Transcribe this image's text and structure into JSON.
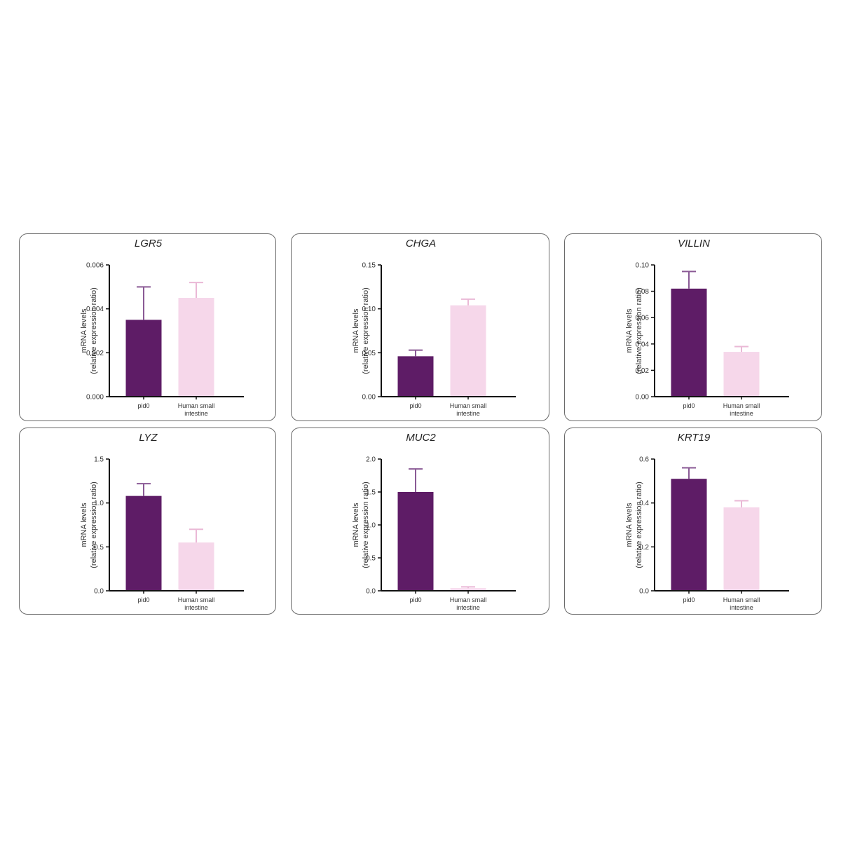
{
  "colors": {
    "bar1": "#5e1c66",
    "bar2": "#f6d7ea",
    "err1": "#8a5a95",
    "err2": "#eab8d6"
  },
  "chart_data": [
    {
      "type": "bar",
      "title": "LGR5",
      "ylabel": [
        "mRNA levels",
        "(relative expression ratio)"
      ],
      "categories": [
        "pid0",
        "Human small intestine"
      ],
      "category_lines": [
        [
          "pid0"
        ],
        [
          "Human small",
          "intestine"
        ]
      ],
      "values": [
        0.0035,
        0.0045
      ],
      "errors": [
        0.0015,
        0.0007
      ],
      "ylim": [
        0,
        0.006
      ],
      "yticks": [
        0,
        0.002,
        0.004,
        0.006
      ],
      "ytick_labels": [
        "0.000",
        "0.002",
        "0.004",
        "0.006"
      ]
    },
    {
      "type": "bar",
      "title": "CHGA",
      "ylabel": [
        "mRNA levels",
        "(relative expression ratio)"
      ],
      "categories": [
        "pid0",
        "Human small intestine"
      ],
      "category_lines": [
        [
          "pid0"
        ],
        [
          "Human small",
          "intestine"
        ]
      ],
      "values": [
        0.046,
        0.104
      ],
      "errors": [
        0.007,
        0.007
      ],
      "ylim": [
        0,
        0.15
      ],
      "yticks": [
        0,
        0.05,
        0.1,
        0.15
      ],
      "ytick_labels": [
        "0.00",
        "0.05",
        "0.10",
        "0.15"
      ]
    },
    {
      "type": "bar",
      "title": "VILLIN",
      "ylabel": [
        "mRNA levels",
        "(relative expression ratio)"
      ],
      "categories": [
        "pid0",
        "Human small intestine"
      ],
      "category_lines": [
        [
          "pid0"
        ],
        [
          "Human small",
          "intestine"
        ]
      ],
      "values": [
        0.082,
        0.034
      ],
      "errors": [
        0.013,
        0.004
      ],
      "ylim": [
        0,
        0.1
      ],
      "yticks": [
        0,
        0.02,
        0.04,
        0.06,
        0.08,
        0.1
      ],
      "ytick_labels": [
        "0.00",
        "0.02",
        "0.04",
        "0.06",
        "0.08",
        "0.10"
      ]
    },
    {
      "type": "bar",
      "title": "LYZ",
      "ylabel": [
        "mRNA levels",
        "(relative expression ratio)"
      ],
      "categories": [
        "pid0",
        "Human small intestine"
      ],
      "category_lines": [
        [
          "pid0"
        ],
        [
          "Human small",
          "intestine"
        ]
      ],
      "values": [
        1.08,
        0.55
      ],
      "errors": [
        0.14,
        0.15
      ],
      "ylim": [
        0,
        1.5
      ],
      "yticks": [
        0,
        0.5,
        1.0,
        1.5
      ],
      "ytick_labels": [
        "0.0",
        "0.5",
        "1.0",
        "1.5"
      ]
    },
    {
      "type": "bar",
      "title": "MUC2",
      "ylabel": [
        "mRNA levels",
        "(relative expression ratio)"
      ],
      "categories": [
        "pid0",
        "Human small intestine"
      ],
      "category_lines": [
        [
          "pid0"
        ],
        [
          "Human small",
          "intestine"
        ]
      ],
      "values": [
        1.5,
        0.04
      ],
      "errors": [
        0.35,
        0.02
      ],
      "ylim": [
        0,
        2.0
      ],
      "yticks": [
        0,
        0.5,
        1.0,
        1.5,
        2.0
      ],
      "ytick_labels": [
        "0.0",
        "0.5",
        "1.0",
        "1.5",
        "2.0"
      ]
    },
    {
      "type": "bar",
      "title": "KRT19",
      "ylabel": [
        "mRNA levels",
        "(relative expression ratio)"
      ],
      "categories": [
        "pid0",
        "Human small intestine"
      ],
      "category_lines": [
        [
          "pid0"
        ],
        [
          "Human small",
          "intestine"
        ]
      ],
      "values": [
        0.51,
        0.38
      ],
      "errors": [
        0.05,
        0.03
      ],
      "ylim": [
        0,
        0.6
      ],
      "yticks": [
        0,
        0.2,
        0.4,
        0.6
      ],
      "ytick_labels": [
        "0.0",
        "0.2",
        "0.4",
        "0.6"
      ]
    }
  ]
}
